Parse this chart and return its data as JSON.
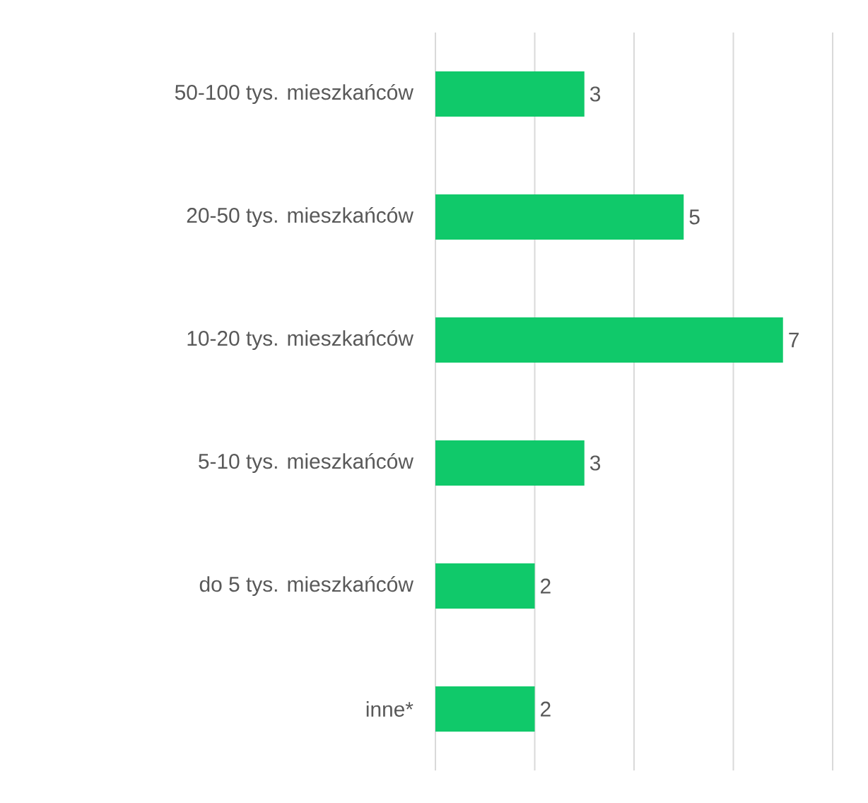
{
  "chart_data": {
    "type": "bar",
    "orientation": "horizontal",
    "categories": [
      "50-100 tys. mieszkańców",
      "20-50 tys. mieszkańców",
      "10-20 tys. mieszkańców",
      "5-10 tys. mieszkańców",
      "do 5 tys. mieszkańców",
      "inne*"
    ],
    "values": [
      3,
      5,
      7,
      3,
      2,
      2
    ],
    "color": "#10c96a",
    "xlim": [
      0,
      8
    ],
    "xticks": [
      {
        "value": 0,
        "label": null
      },
      {
        "value": 2,
        "label": null
      },
      {
        "value": 4,
        "label": null
      },
      {
        "value": 6,
        "label": null
      },
      {
        "value": 8,
        "label": null
      }
    ],
    "grid": "x",
    "tick_labels": "y",
    "data_labels": true
  }
}
